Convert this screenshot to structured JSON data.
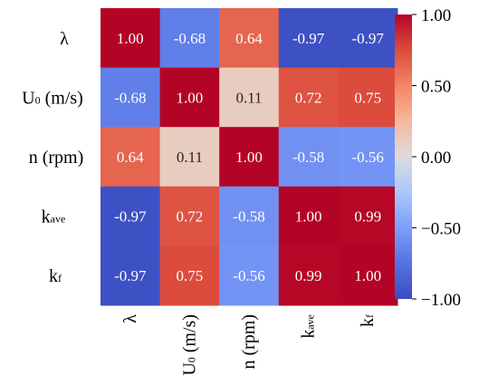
{
  "chart_data": {
    "type": "heatmap",
    "title": "",
    "row_labels": [
      {
        "main": "λ",
        "sub": ""
      },
      {
        "main": "U",
        "sub": "0",
        "rest": " (m/s)"
      },
      {
        "main": "n (rpm)",
        "sub": ""
      },
      {
        "main": "k",
        "sub": "ave"
      },
      {
        "main": "k",
        "sub": "f"
      }
    ],
    "col_labels": [
      {
        "main": "λ",
        "sub": ""
      },
      {
        "main": "U",
        "sub": "0",
        "rest": " (m/s)"
      },
      {
        "main": "n (rpm)",
        "sub": ""
      },
      {
        "main": "k",
        "sub": "ave"
      },
      {
        "main": "k",
        "sub": "f"
      }
    ],
    "values": [
      [
        1.0,
        -0.68,
        0.64,
        -0.97,
        -0.97
      ],
      [
        -0.68,
        1.0,
        0.11,
        0.72,
        0.75
      ],
      [
        0.64,
        0.11,
        1.0,
        -0.58,
        -0.56
      ],
      [
        -0.97,
        0.72,
        -0.58,
        1.0,
        0.99
      ],
      [
        -0.97,
        0.75,
        -0.56,
        0.99,
        1.0
      ]
    ],
    "value_format": "0.00",
    "colormap": "coolwarm",
    "vmin": -1.0,
    "vmax": 1.0,
    "colorbar_ticks": [
      "1.00",
      "0.50",
      "0.00",
      "−0.50",
      "−1.00"
    ],
    "colorbar_tick_values": [
      1.0,
      0.5,
      0.0,
      -0.5,
      -1.0
    ]
  },
  "colors": {
    "cold": "#3b4cc0",
    "neutral": "#dddddd",
    "warm": "#b40426"
  }
}
